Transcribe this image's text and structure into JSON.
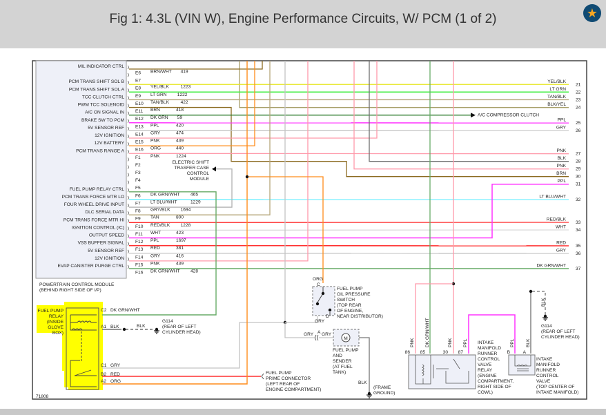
{
  "header": {
    "title": "Fig 1: 4.3L (VIN W), Engine Performance Circuits, W/ PCM (1 of 2)",
    "favorite_icon": "star-icon"
  },
  "wire_colors": {
    "BRN/WHT": "#8b6a20",
    "YEL/BLK": "#e6e620",
    "LT GRN": "#44ee44",
    "TAN/BLK": "#b5a67a",
    "BRN": "#8b6a20",
    "DK GRN": "#2a7a2a",
    "PPL": "#ff33ff",
    "GRY": "#c4c4c4",
    "PNK": "#ff99aa",
    "ORG": "#ff8c1a",
    "DK GRN/WHT": "#66aa66",
    "LT BLU/WHT": "#66eeff",
    "GRY/BLK": "#b0b0b0",
    "TAN": "#b5a67a",
    "RED/BLK": "#ff2a2a",
    "WHT": "#dddddd",
    "RED": "#ff3030",
    "BLK/YEL": "#a89f6a",
    "BLK": "#707070"
  },
  "highlight_color": "#ffff00",
  "pcm": {
    "name": "POWERTRAIN CONTROL MODULE",
    "location": "(BEHIND RIGHT SIDE OF I/P)",
    "pins": [
      {
        "label": "MIL INDICATOR CTRL",
        "pin": "E6",
        "color": "BRN/WHT",
        "circuit": "419"
      },
      {
        "label": "",
        "pin": "E7",
        "color": "",
        "circuit": ""
      },
      {
        "label": "PCM TRANS SHIFT SOL B",
        "pin": "E8",
        "color": "YEL/BLK",
        "circuit": "1223"
      },
      {
        "label": "PCM TRANS SHIFT SOL A",
        "pin": "E9",
        "color": "LT GRN",
        "circuit": "1222"
      },
      {
        "label": "TCC CLUTCH CTRL",
        "pin": "E10",
        "color": "TAN/BLK",
        "circuit": "422"
      },
      {
        "label": "PWM TCC SOLENOID",
        "pin": "E11",
        "color": "BRN",
        "circuit": "418"
      },
      {
        "label": "A/C ON SIGNAL IN",
        "pin": "E12",
        "color": "DK GRN",
        "circuit": "59"
      },
      {
        "label": "BRAKE SW TO PCM",
        "pin": "E13",
        "color": "PPL",
        "circuit": "420"
      },
      {
        "label": "5V SENSOR REF",
        "pin": "E14",
        "color": "GRY",
        "circuit": "474"
      },
      {
        "label": "12V IGNITION",
        "pin": "E15",
        "color": "PNK",
        "circuit": "439"
      },
      {
        "label": "12V BATTERY",
        "pin": "E16",
        "color": "ORG",
        "circuit": "440"
      },
      {
        "label": "PCM TRANS RANGE A",
        "pin": "F1",
        "color": "PNK",
        "circuit": "1224"
      },
      {
        "label": "",
        "pin": "F2",
        "color": "",
        "circuit": ""
      },
      {
        "label": "",
        "pin": "F3",
        "color": "",
        "circuit": ""
      },
      {
        "label": "",
        "pin": "F4",
        "color": "",
        "circuit": ""
      },
      {
        "label": "",
        "pin": "F5",
        "color": "",
        "circuit": ""
      },
      {
        "label": "FUEL PUMP RELAY CTRL",
        "pin": "F6",
        "color": "DK GRN/WHT",
        "circuit": "465"
      },
      {
        "label": "PCM TRANS FORCE MTR LO",
        "pin": "F7",
        "color": "LT BLU/WHT",
        "circuit": "1229"
      },
      {
        "label": "FOUR WHEEL DRIVE INPUT",
        "pin": "F8",
        "color": "GRY/BLK",
        "circuit": "1694"
      },
      {
        "label": "DLC SERIAL DATA",
        "pin": "F9",
        "color": "TAN",
        "circuit": "800"
      },
      {
        "label": "PCM TRANS FORCE MTR HI",
        "pin": "F10",
        "color": "RED/BLK",
        "circuit": "1228"
      },
      {
        "label": "IGNITION CONTROL (IC)",
        "pin": "F11",
        "color": "WHT",
        "circuit": "423"
      },
      {
        "label": "OUTPUT SPEED",
        "pin": "F12",
        "color": "PPL",
        "circuit": "1697"
      },
      {
        "label": "VSS BUFFER SIGNAL",
        "pin": "F13",
        "color": "RED",
        "circuit": "381"
      },
      {
        "label": "5V SENSOR REF",
        "pin": "F14",
        "color": "GRY",
        "circuit": "416"
      },
      {
        "label": "12V IGNITION",
        "pin": "F15",
        "color": "PNK",
        "circuit": "439"
      },
      {
        "label": "EVAP CANISTER PURGE CTRL",
        "pin": "F16",
        "color": "DK GRN/WHT",
        "circuit": "428"
      }
    ]
  },
  "continuations": [
    {
      "num": "21",
      "color": "YEL/BLK"
    },
    {
      "num": "22",
      "color": "LT GRN"
    },
    {
      "num": "23",
      "color": "TAN/BLK"
    },
    {
      "num": "24",
      "color": "BLK/YEL"
    },
    {
      "num": "25",
      "color": "PPL"
    },
    {
      "num": "26",
      "color": "GRY"
    },
    {
      "num": "27",
      "color": "PNK"
    },
    {
      "num": "28",
      "color": "BLK"
    },
    {
      "num": "29",
      "color": "PNK"
    },
    {
      "num": "30",
      "color": "BRN"
    },
    {
      "num": "31",
      "color": "PPL"
    },
    {
      "num": "32",
      "color": "LT BLU/WHT"
    },
    {
      "num": "33",
      "color": "RED/BLK"
    },
    {
      "num": "34",
      "color": "WHT"
    },
    {
      "num": "35",
      "color": "RED"
    },
    {
      "num": "36",
      "color": "GRY"
    },
    {
      "num": "37",
      "color": "DK GRN/WHT"
    }
  ],
  "ac_clutch": "A/C COMPRESSOR CLUTCH",
  "transfer_case": [
    "ELECTRIC SHIFT",
    "TRASFER CASE",
    "CONTROL",
    "MODULE"
  ],
  "fuel_pump_relay": {
    "label": [
      "FUEL PUMP",
      "RELAY",
      "(INSIDE",
      "GLOVE",
      "BOX)"
    ],
    "pins": [
      {
        "pin": "C2",
        "color": "DK GRN/WHT"
      },
      {
        "pin": "A1",
        "color": "BLK"
      },
      {
        "pin": "C1",
        "color": "GRY"
      },
      {
        "pin": "B2",
        "color": "RED"
      },
      {
        "pin": "A2",
        "color": "ORG"
      }
    ],
    "ground_wire": "BLK"
  },
  "g114_left": [
    "G114",
    "(REAR OF LEFT",
    "CYLINDER HEAD)"
  ],
  "prime_connector": [
    "FUEL PUMP",
    "PRIME CONNECTOR",
    "(LEFT REAR OF",
    "ENGINE COMPARTMENT)"
  ],
  "oil_pressure_switch": {
    "wire_in": "ORG",
    "pin_in": "C",
    "pin_out": "D",
    "wire_out": "GRY",
    "label": [
      "FUEL PUMP",
      "OIL PRESSURE",
      "SWITCH",
      "(TOP REAR",
      "OF ENGINE,",
      "NEAR DISTRIBUTOR)"
    ]
  },
  "fuel_pump": {
    "wire_left": "GRY",
    "pin": "A",
    "wire_right": "GRY",
    "motor_symbol": "M",
    "label": [
      "FUEL PUMP",
      "AND",
      "SENDER",
      "(AT FUEL",
      "TANK)"
    ],
    "ground_wire": "BLK",
    "ground_label": [
      "(FRAME",
      "GROUND)"
    ]
  },
  "imrc_relay": {
    "pins": [
      {
        "pin": "86",
        "color": "PNK"
      },
      {
        "pin": "85",
        "color": "DK GRN/WHT"
      },
      {
        "pin": "30",
        "color": "PNK"
      },
      {
        "pin": "87",
        "color": "PPL"
      }
    ],
    "label": [
      "INTAKE",
      "MANIFOLD",
      "RUNNER",
      "CONTROL",
      "VALVE",
      "RELAY",
      "(ENGINE",
      "COMPARTMENT,",
      "RIGHT SIDE OF",
      "COWL)"
    ]
  },
  "imrc_valve": {
    "pins": [
      {
        "pin": "B",
        "color": "PPL"
      },
      {
        "pin": "A",
        "color": "BLK"
      }
    ],
    "label": [
      "INTAKE",
      "MANIFOLD",
      "RUNNER",
      "CONTROL",
      "VALVE",
      "(TOP CENTER OF",
      "INTAKE MANIFOLD)"
    ],
    "ground_wire": "BLK"
  },
  "g114_right": [
    "G114",
    "(REAR OF LEFT",
    "CYLINDER HEAD)"
  ],
  "figure_number": "71808"
}
